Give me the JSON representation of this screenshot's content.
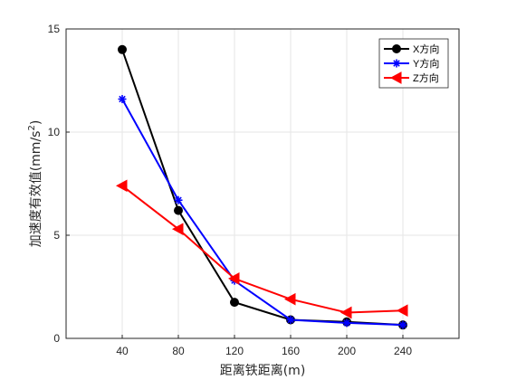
{
  "chart_data": {
    "type": "line",
    "x": [
      40,
      80,
      120,
      160,
      200,
      240
    ],
    "xlim": [
      0,
      280
    ],
    "ylim": [
      0,
      15
    ],
    "xticks": [
      "40",
      "80",
      "120",
      "160",
      "200",
      "240"
    ],
    "yticks": [
      "0",
      "5",
      "10",
      "15"
    ],
    "xlabel": "距离铁距离(m)",
    "ylabel": "加速度有效值(mm/s²)",
    "ylabel_main": "加速度有效值(mm/s",
    "ylabel_sup": "2",
    "ylabel_tail": ")",
    "grid": true,
    "legend_position": "top-right",
    "series": [
      {
        "name": "X方向",
        "color": "#000000",
        "marker": "circle",
        "values": [
          14.0,
          6.2,
          1.75,
          0.9,
          0.8,
          0.65
        ]
      },
      {
        "name": "Y方向",
        "color": "#0000ff",
        "marker": "asterisk",
        "values": [
          11.6,
          6.7,
          2.8,
          0.9,
          0.75,
          0.65
        ]
      },
      {
        "name": "Z方向",
        "color": "#ff0000",
        "marker": "triangle-left",
        "values": [
          7.4,
          5.3,
          2.9,
          1.9,
          1.25,
          1.35
        ]
      }
    ]
  }
}
